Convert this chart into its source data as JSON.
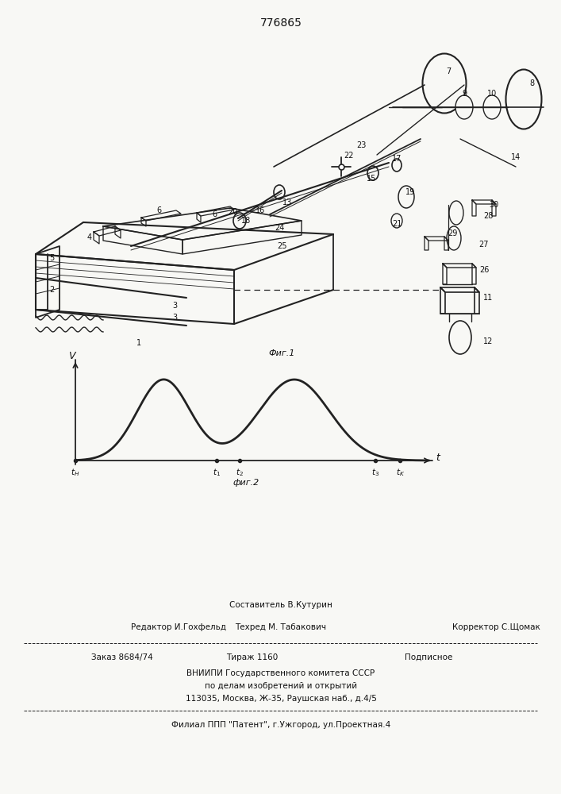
{
  "patent_number": "776865",
  "background_color": "#f8f8f5",
  "line_color": "#222222",
  "text_color": "#111111",
  "footer_sestavitel": "Составитель В.Кутурин",
  "footer_redaktor": "Редактор И.Гохфельд",
  "footer_tehred": "Техред М. Табакович",
  "footer_korrektor": "Корректор С.Щомак",
  "footer_zakaz": "Заказ 8684/74",
  "footer_tirazh": "Тираж 1160",
  "footer_podpisnoe": "Подписное",
  "footer_vniip": "ВНИИПИ Государственного комитета СССР",
  "footer_po_delam": "по делам изобретений и открытий",
  "footer_address": "113035, Москва, Ж-35, Раушская наб., д.4/5",
  "footer_filial": "Филиал ППП \"Патент\", г.Ужгород, ул.Проектная.4",
  "fig1_label": "Фиг.1",
  "fig2_label": "фиг.2"
}
